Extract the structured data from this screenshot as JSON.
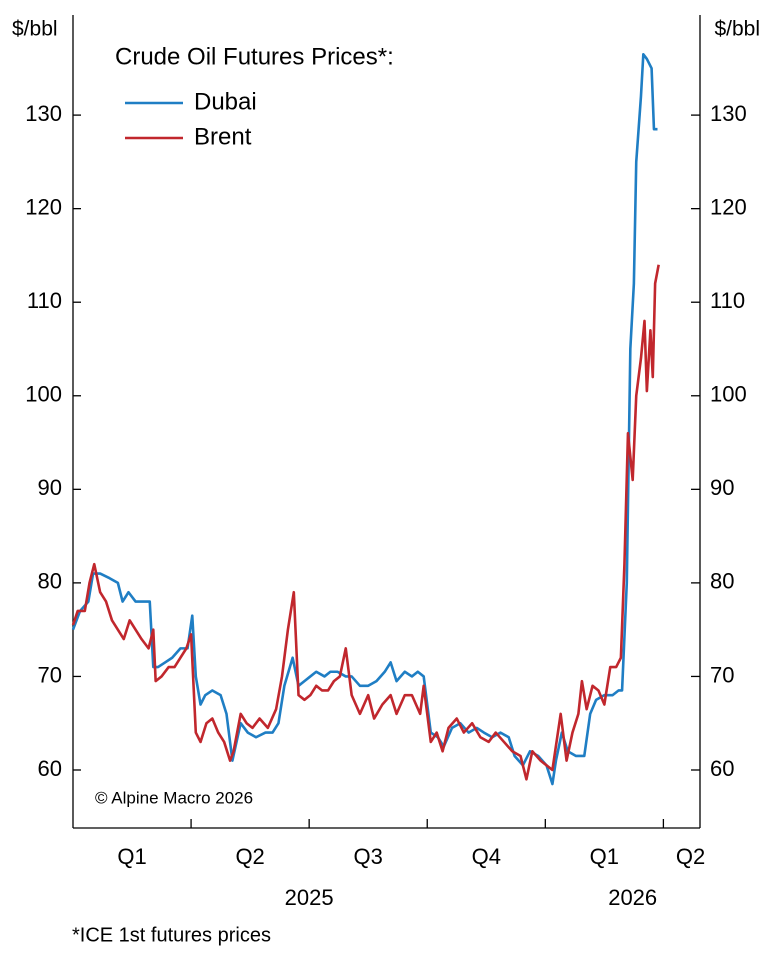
{
  "chart_data": {
    "type": "line",
    "title": "Crude Oil Futures Prices*:",
    "y_label": "$/bbl",
    "y2_label": "$/bbl",
    "footnote": "*ICE 1st futures prices",
    "copyright": "© Alpine Macro 2026",
    "xlim": [
      0,
      5.31
    ],
    "xtick_positions": [
      1,
      2,
      3,
      4,
      5
    ],
    "x_quarter_labels": [
      {
        "value": 0.5,
        "label": "Q1"
      },
      {
        "value": 1.5,
        "label": "Q2"
      },
      {
        "value": 2.5,
        "label": "Q3"
      },
      {
        "value": 3.5,
        "label": "Q4"
      },
      {
        "value": 4.5,
        "label": "Q1"
      },
      {
        "value": 5.23,
        "label": "Q2"
      }
    ],
    "x_year_labels": [
      {
        "value": 2,
        "label": "2025"
      },
      {
        "value": 4.74,
        "label": "2026"
      }
    ],
    "ylim": [
      53.8,
      140.7
    ],
    "yticks": [
      60,
      70,
      80,
      90,
      100,
      110,
      120,
      130
    ],
    "y2lim": [
      53.8,
      140.7
    ],
    "y2ticks": [
      60,
      70,
      80,
      90,
      100,
      110,
      120,
      130
    ],
    "series": [
      {
        "name": "Dubai",
        "color": "#1f7ec4",
        "x": [
          0,
          0.06,
          0.13,
          0.17,
          0.23,
          0.31,
          0.38,
          0.42,
          0.47,
          0.53,
          0.58,
          0.65,
          0.68,
          0.72,
          0.78,
          0.84,
          0.91,
          0.97,
          1.01,
          1.04,
          1.08,
          1.12,
          1.18,
          1.25,
          1.3,
          1.35,
          1.42,
          1.48,
          1.55,
          1.63,
          1.69,
          1.74,
          1.79,
          1.86,
          1.91,
          1.96,
          2.01,
          2.06,
          2.13,
          2.18,
          2.24,
          2.31,
          2.36,
          2.43,
          2.5,
          2.57,
          2.64,
          2.69,
          2.74,
          2.81,
          2.87,
          2.92,
          2.97,
          3.03,
          3.09,
          3.14,
          3.21,
          3.28,
          3.35,
          3.42,
          3.48,
          3.55,
          3.62,
          3.69,
          3.74,
          3.81,
          3.87,
          3.94,
          4.01,
          4.06,
          4.09,
          4.14,
          4.19,
          4.26,
          4.33,
          4.38,
          4.43,
          4.5,
          4.57,
          4.62,
          4.65,
          4.69,
          4.72,
          4.75,
          4.77,
          4.81,
          4.83,
          4.86,
          4.9,
          4.92,
          4.95
        ],
        "values": [
          75,
          77,
          78,
          81,
          81,
          80.5,
          80,
          78,
          79,
          78,
          78,
          78,
          71,
          71,
          71.5,
          72,
          73,
          73,
          76.5,
          70,
          67,
          68,
          68.5,
          68,
          66,
          61,
          65,
          64,
          63.5,
          64,
          64,
          65,
          69,
          72,
          69,
          69.5,
          70,
          70.5,
          70,
          70.5,
          70.5,
          70,
          70,
          69,
          69,
          69.5,
          70.5,
          71.5,
          69.5,
          70.5,
          70,
          70.5,
          70,
          64,
          63.5,
          62.5,
          64.5,
          65,
          64,
          64.5,
          64,
          63.5,
          64,
          63.5,
          61.5,
          60.5,
          62,
          61.5,
          60.5,
          58.5,
          61,
          64,
          62,
          61.5,
          61.5,
          66,
          67.5,
          68,
          68,
          68.5,
          68.5,
          80,
          105,
          112,
          125,
          132,
          136.5,
          136,
          135,
          128.5,
          128.5
        ]
      },
      {
        "name": "Brent",
        "color": "#c1272d",
        "x": [
          0,
          0.04,
          0.1,
          0.14,
          0.18,
          0.23,
          0.28,
          0.33,
          0.38,
          0.43,
          0.48,
          0.53,
          0.58,
          0.64,
          0.68,
          0.7,
          0.75,
          0.81,
          0.86,
          0.91,
          0.96,
          1.0,
          1.04,
          1.08,
          1.13,
          1.18,
          1.23,
          1.28,
          1.33,
          1.36,
          1.42,
          1.47,
          1.52,
          1.58,
          1.65,
          1.72,
          1.77,
          1.82,
          1.87,
          1.91,
          1.96,
          2.01,
          2.06,
          2.11,
          2.16,
          2.21,
          2.26,
          2.31,
          2.36,
          2.43,
          2.5,
          2.55,
          2.62,
          2.69,
          2.74,
          2.81,
          2.87,
          2.94,
          2.97,
          3.03,
          3.08,
          3.13,
          3.18,
          3.25,
          3.31,
          3.38,
          3.45,
          3.52,
          3.58,
          3.65,
          3.72,
          3.79,
          3.84,
          3.89,
          3.96,
          4.01,
          4.06,
          4.13,
          4.18,
          4.23,
          4.28,
          4.31,
          4.35,
          4.4,
          4.45,
          4.5,
          4.55,
          4.6,
          4.64,
          4.67,
          4.7,
          4.74,
          4.77,
          4.81,
          4.84,
          4.86,
          4.89,
          4.91,
          4.93,
          4.96
        ],
        "values": [
          75.5,
          77,
          77,
          80,
          82,
          79,
          78,
          76,
          75,
          74,
          76,
          75,
          74,
          73,
          75,
          69.5,
          70,
          71,
          71,
          72,
          73,
          74.5,
          64,
          63,
          65,
          65.5,
          64,
          63,
          61,
          62,
          66,
          65,
          64.5,
          65.5,
          64.5,
          66.5,
          70,
          75,
          79,
          68,
          67.5,
          68,
          69,
          68.5,
          68.5,
          69.5,
          70,
          73,
          68,
          66,
          68,
          65.5,
          67,
          68,
          66,
          68,
          68,
          66,
          69,
          63,
          64,
          62,
          64.5,
          65.5,
          64,
          65,
          63.5,
          63,
          64,
          63,
          62,
          61.5,
          59,
          62,
          61,
          60.5,
          60,
          66,
          61,
          64,
          66,
          69.5,
          66.5,
          69,
          68.5,
          67,
          71,
          71,
          72,
          82,
          96,
          91,
          100,
          104,
          108,
          100.5,
          107,
          102,
          112,
          114
        ]
      }
    ]
  }
}
